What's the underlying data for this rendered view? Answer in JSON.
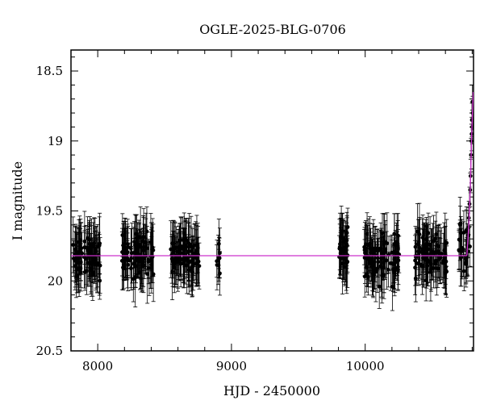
{
  "chart_data": {
    "type": "scatter",
    "title": "OGLE-2025-BLG-0706",
    "xlabel": "HJD - 2450000",
    "ylabel": "I magnitude",
    "xlim": [
      7800,
      10810
    ],
    "ylim": [
      20.5,
      18.35
    ],
    "y_inverted": true,
    "grid": false,
    "x_ticks": [
      8000,
      9000,
      10000
    ],
    "x_tick_labels": [
      "8000",
      "9000",
      "10000"
    ],
    "y_ticks": [
      18.5,
      19,
      19.5,
      20,
      20.5
    ],
    "y_tick_labels": [
      "18.5",
      "19",
      "19.5",
      "20",
      "20.5"
    ],
    "colors": {
      "points": "#000000",
      "model": "#cc33cc"
    },
    "baseline_magnitude": 19.82,
    "observing_seasons": [
      {
        "start": 7815,
        "end": 8020,
        "n_points": 85,
        "center": 19.82,
        "scatter": 0.13,
        "error": 0.17
      },
      {
        "start": 8180,
        "end": 8420,
        "n_points": 90,
        "center": 19.82,
        "scatter": 0.12,
        "error": 0.17
      },
      {
        "start": 8540,
        "end": 8760,
        "n_points": 85,
        "center": 19.82,
        "scatter": 0.12,
        "error": 0.17
      },
      {
        "start": 8890,
        "end": 8920,
        "n_points": 10,
        "center": 19.85,
        "scatter": 0.09,
        "error": 0.14
      },
      {
        "start": 9800,
        "end": 9870,
        "n_points": 35,
        "center": 19.75,
        "scatter": 0.14,
        "error": 0.17
      },
      {
        "start": 9990,
        "end": 10260,
        "n_points": 95,
        "center": 19.82,
        "scatter": 0.13,
        "error": 0.17
      },
      {
        "start": 10360,
        "end": 10610,
        "n_points": 85,
        "center": 19.82,
        "scatter": 0.12,
        "error": 0.17
      },
      {
        "start": 10700,
        "end": 10790,
        "n_points": 30,
        "center": 19.75,
        "scatter": 0.13,
        "error": 0.16
      }
    ],
    "rising_points": [
      {
        "x": 10775,
        "y": 19.55
      },
      {
        "x": 10780,
        "y": 19.45
      },
      {
        "x": 10785,
        "y": 19.35
      },
      {
        "x": 10788,
        "y": 19.25
      },
      {
        "x": 10791,
        "y": 19.1
      },
      {
        "x": 10794,
        "y": 19.0
      },
      {
        "x": 10796,
        "y": 18.95
      },
      {
        "x": 10798,
        "y": 18.85
      },
      {
        "x": 10800,
        "y": 18.9
      },
      {
        "x": 10802,
        "y": 18.72
      },
      {
        "x": 10804,
        "y": 18.8
      }
    ],
    "model": {
      "type": "line",
      "baseline": 19.82,
      "rise_start": 10760,
      "points": [
        {
          "x": 10760,
          "y": 19.82
        },
        {
          "x": 10775,
          "y": 19.6
        },
        {
          "x": 10785,
          "y": 19.35
        },
        {
          "x": 10795,
          "y": 19.0
        },
        {
          "x": 10802,
          "y": 18.8
        },
        {
          "x": 10808,
          "y": 18.65
        }
      ]
    }
  }
}
